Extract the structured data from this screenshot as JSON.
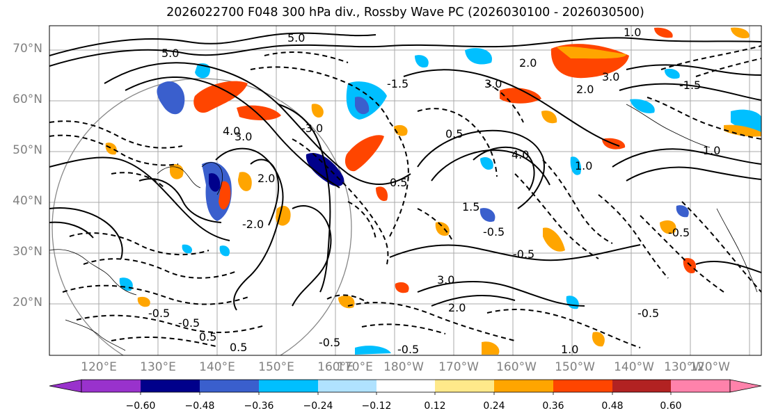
{
  "title": "2026022700 F048 300 hPa div., Rossby Wave PC (2026030100 - 2026030500)",
  "lat_labels": [
    "70°N",
    "60°N",
    "50°N",
    "40°N",
    "30°N",
    "20°N"
  ],
  "lon_labels": [
    "120°E",
    "130°E",
    "140°E",
    "150°E",
    "160°E",
    "170°E",
    "180°W",
    "170°W",
    "160°W",
    "150°W",
    "140°W",
    "130°W",
    "120°W"
  ],
  "colorbar": {
    "ticks": [
      "−0.60",
      "−0.48",
      "−0.36",
      "−0.24",
      "−0.12",
      "0.12",
      "0.24",
      "0.36",
      "0.48",
      "0.60"
    ],
    "colors": [
      "#9932cc",
      "#00008b",
      "#3a5fcd",
      "#00bfff",
      "#b0e2ff",
      "#ffffff",
      "#ffe98a",
      "#ffa500",
      "#ff4500",
      "#b22222",
      "#ff82ab"
    ]
  },
  "contour_labels": [
    "5.0",
    "3.0",
    "4.0",
    "2.0",
    "1.5",
    "1.0",
    "0.5",
    "-0.5",
    "-2.0",
    "-1.5",
    "-3.0",
    "5.0",
    "3.0",
    "2.0",
    "1.0",
    "-0.5",
    "-0.5",
    "0.5",
    "-0.5",
    "0.5",
    "-0.5",
    "2.0",
    "3.0",
    "-0.5",
    "1.0",
    "-0.5",
    "0.5",
    "4.0",
    "3.0",
    "2.0",
    "-1.5",
    "1.0",
    "-0.5"
  ]
}
